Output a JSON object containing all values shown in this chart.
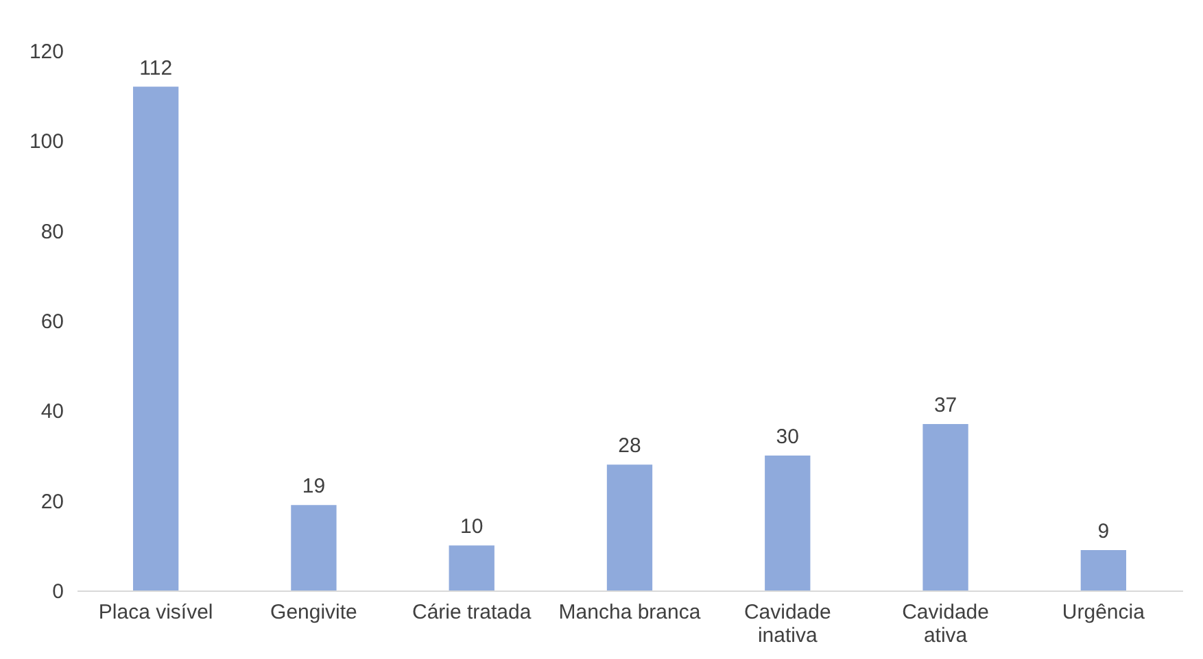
{
  "chart_data": {
    "type": "bar",
    "categories": [
      "Placa visível",
      "Gengivite",
      "Cárie tratada",
      "Mancha branca",
      "Cavidade inativa",
      "Cavidade ativa",
      "Urgência"
    ],
    "values": [
      112,
      19,
      10,
      28,
      30,
      37,
      9
    ],
    "color": "#8faadc",
    "ylim": [
      0,
      120
    ],
    "yticks": [
      0,
      20,
      40,
      60,
      80,
      100,
      120
    ],
    "data_labels": true,
    "grid": false
  }
}
